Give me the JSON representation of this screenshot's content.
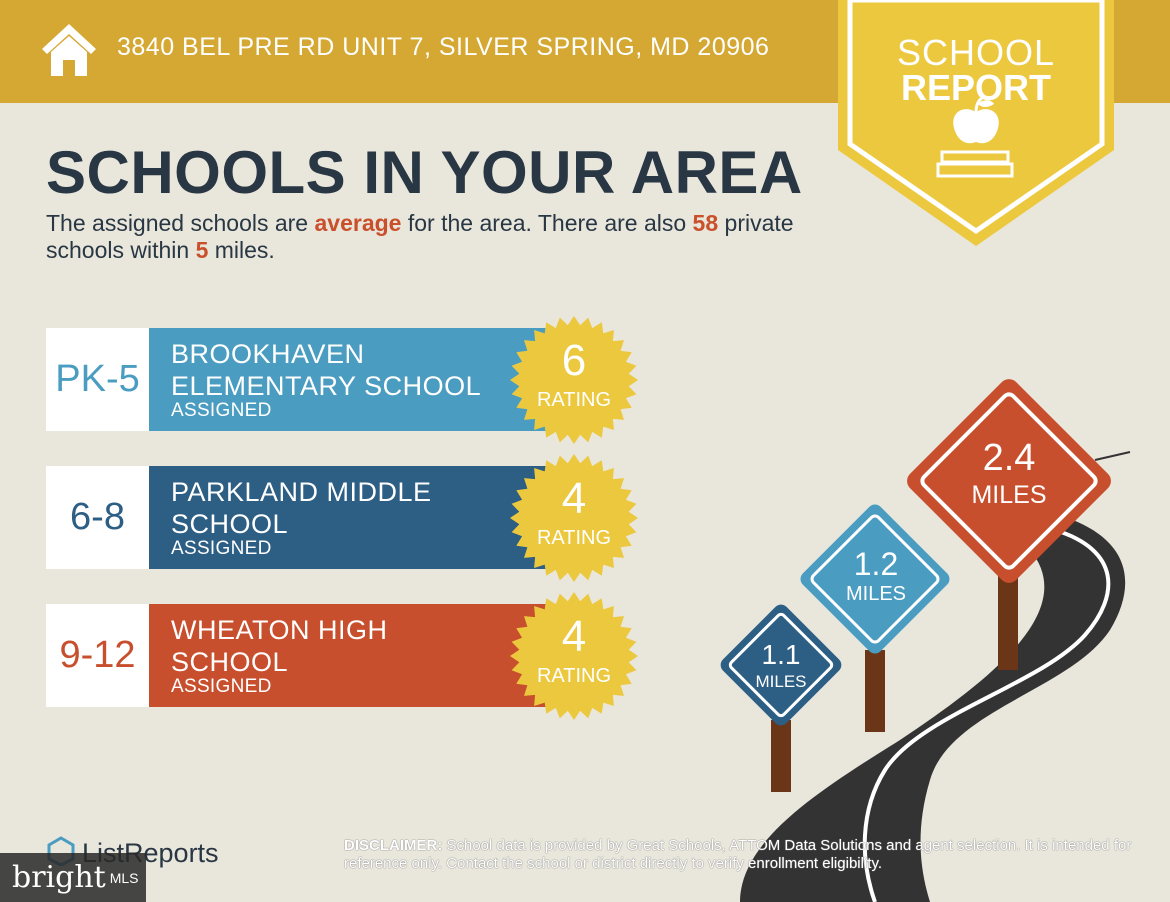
{
  "header": {
    "address": "3840 BEL PRE RD UNIT 7, SILVER SPRING, MD 20906",
    "home_icon": "home-icon"
  },
  "badge": {
    "line1": "SCHOOL",
    "line2": "REPORT",
    "icon": "apple-book-icon"
  },
  "headline": "SCHOOLS IN YOUR AREA",
  "summary": {
    "part1": "The assigned schools are ",
    "quality": "average",
    "part2": " for the area. There are also ",
    "private_count": "58",
    "part3": " private schools within ",
    "radius": "5",
    "part4": " miles."
  },
  "schools": [
    {
      "grades": "PK-5",
      "name": "BROOKHAVEN ELEMENTARY SCHOOL",
      "status": "ASSIGNED",
      "rating": "6",
      "rating_label": "RATING",
      "color": "#4b9cc1"
    },
    {
      "grades": "6-8",
      "name": "PARKLAND MIDDLE SCHOOL",
      "status": "ASSIGNED",
      "rating": "4",
      "rating_label": "RATING",
      "color": "#2d5e84"
    },
    {
      "grades": "9-12",
      "name": "WHEATON HIGH SCHOOL",
      "status": "ASSIGNED",
      "rating": "4",
      "rating_label": "RATING",
      "color": "#c84f2d"
    }
  ],
  "distances": [
    {
      "value": "1.1",
      "unit": "MILES",
      "color": "#2d5e84"
    },
    {
      "value": "1.2",
      "unit": "MILES",
      "color": "#4b9cc1"
    },
    {
      "value": "2.4",
      "unit": "MILES",
      "color": "#c84f2d"
    }
  ],
  "footer": {
    "logo": "ListReports",
    "disclaimer_label": "DISCLAIMER:",
    "disclaimer_text": " School data is provided by Great Schools, ATTOM Data Solutions and agent selection. It is intended for reference only. Contact the school or district directly to verify enrollment eligibility.",
    "watermark_brand": "bright",
    "watermark_mls": "MLS"
  },
  "colors": {
    "gold": "#d4a832",
    "seal": "#ecc83e",
    "navy_text": "#283743",
    "highlight": "#c9502b"
  }
}
